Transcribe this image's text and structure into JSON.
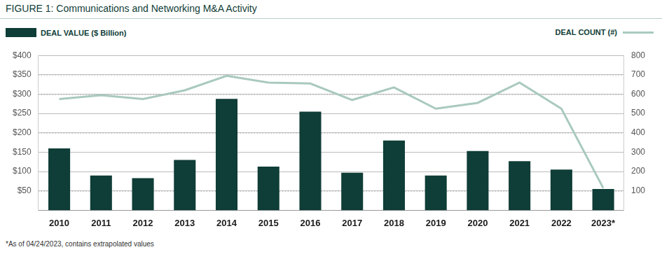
{
  "chart_data": {
    "type": "bar",
    "title": "FIGURE 1: Communications and Networking M&A Activity",
    "annotations": [
      "*As of 04/24/2023, contains extrapolated values"
    ],
    "categories": [
      "2010",
      "2011",
      "2012",
      "2013",
      "2014",
      "2015",
      "2016",
      "2017",
      "2018",
      "2019",
      "2020",
      "2021",
      "2022",
      "2023*"
    ],
    "series": [
      {
        "name": "DEAL VALUE ($ Billion)",
        "type": "bar",
        "color": "#0f3d37",
        "values": [
          160,
          90,
          83,
          130,
          288,
          113,
          255,
          97,
          180,
          90,
          153,
          127,
          105,
          55
        ]
      },
      {
        "name": "DEAL COUNT (#)",
        "type": "line",
        "color": "#a9c9bf",
        "axis": "y2",
        "values": [
          575,
          595,
          575,
          620,
          695,
          660,
          655,
          570,
          635,
          525,
          555,
          660,
          525,
          115
        ]
      }
    ],
    "ylim": [
      0,
      400
    ],
    "yticks": [
      {
        "value": 50,
        "label": "$50"
      },
      {
        "value": 100,
        "label": "$100"
      },
      {
        "value": 150,
        "label": "$150"
      },
      {
        "value": 200,
        "label": "$200"
      },
      {
        "value": 250,
        "label": "$250"
      },
      {
        "value": 300,
        "label": "$300"
      },
      {
        "value": 350,
        "label": "$350"
      },
      {
        "value": 400,
        "label": "$400"
      }
    ],
    "y2lim": [
      0,
      800
    ],
    "y2ticks": [
      100,
      200,
      300,
      400,
      500,
      600,
      700,
      800
    ],
    "grid": true,
    "legend": "top"
  }
}
